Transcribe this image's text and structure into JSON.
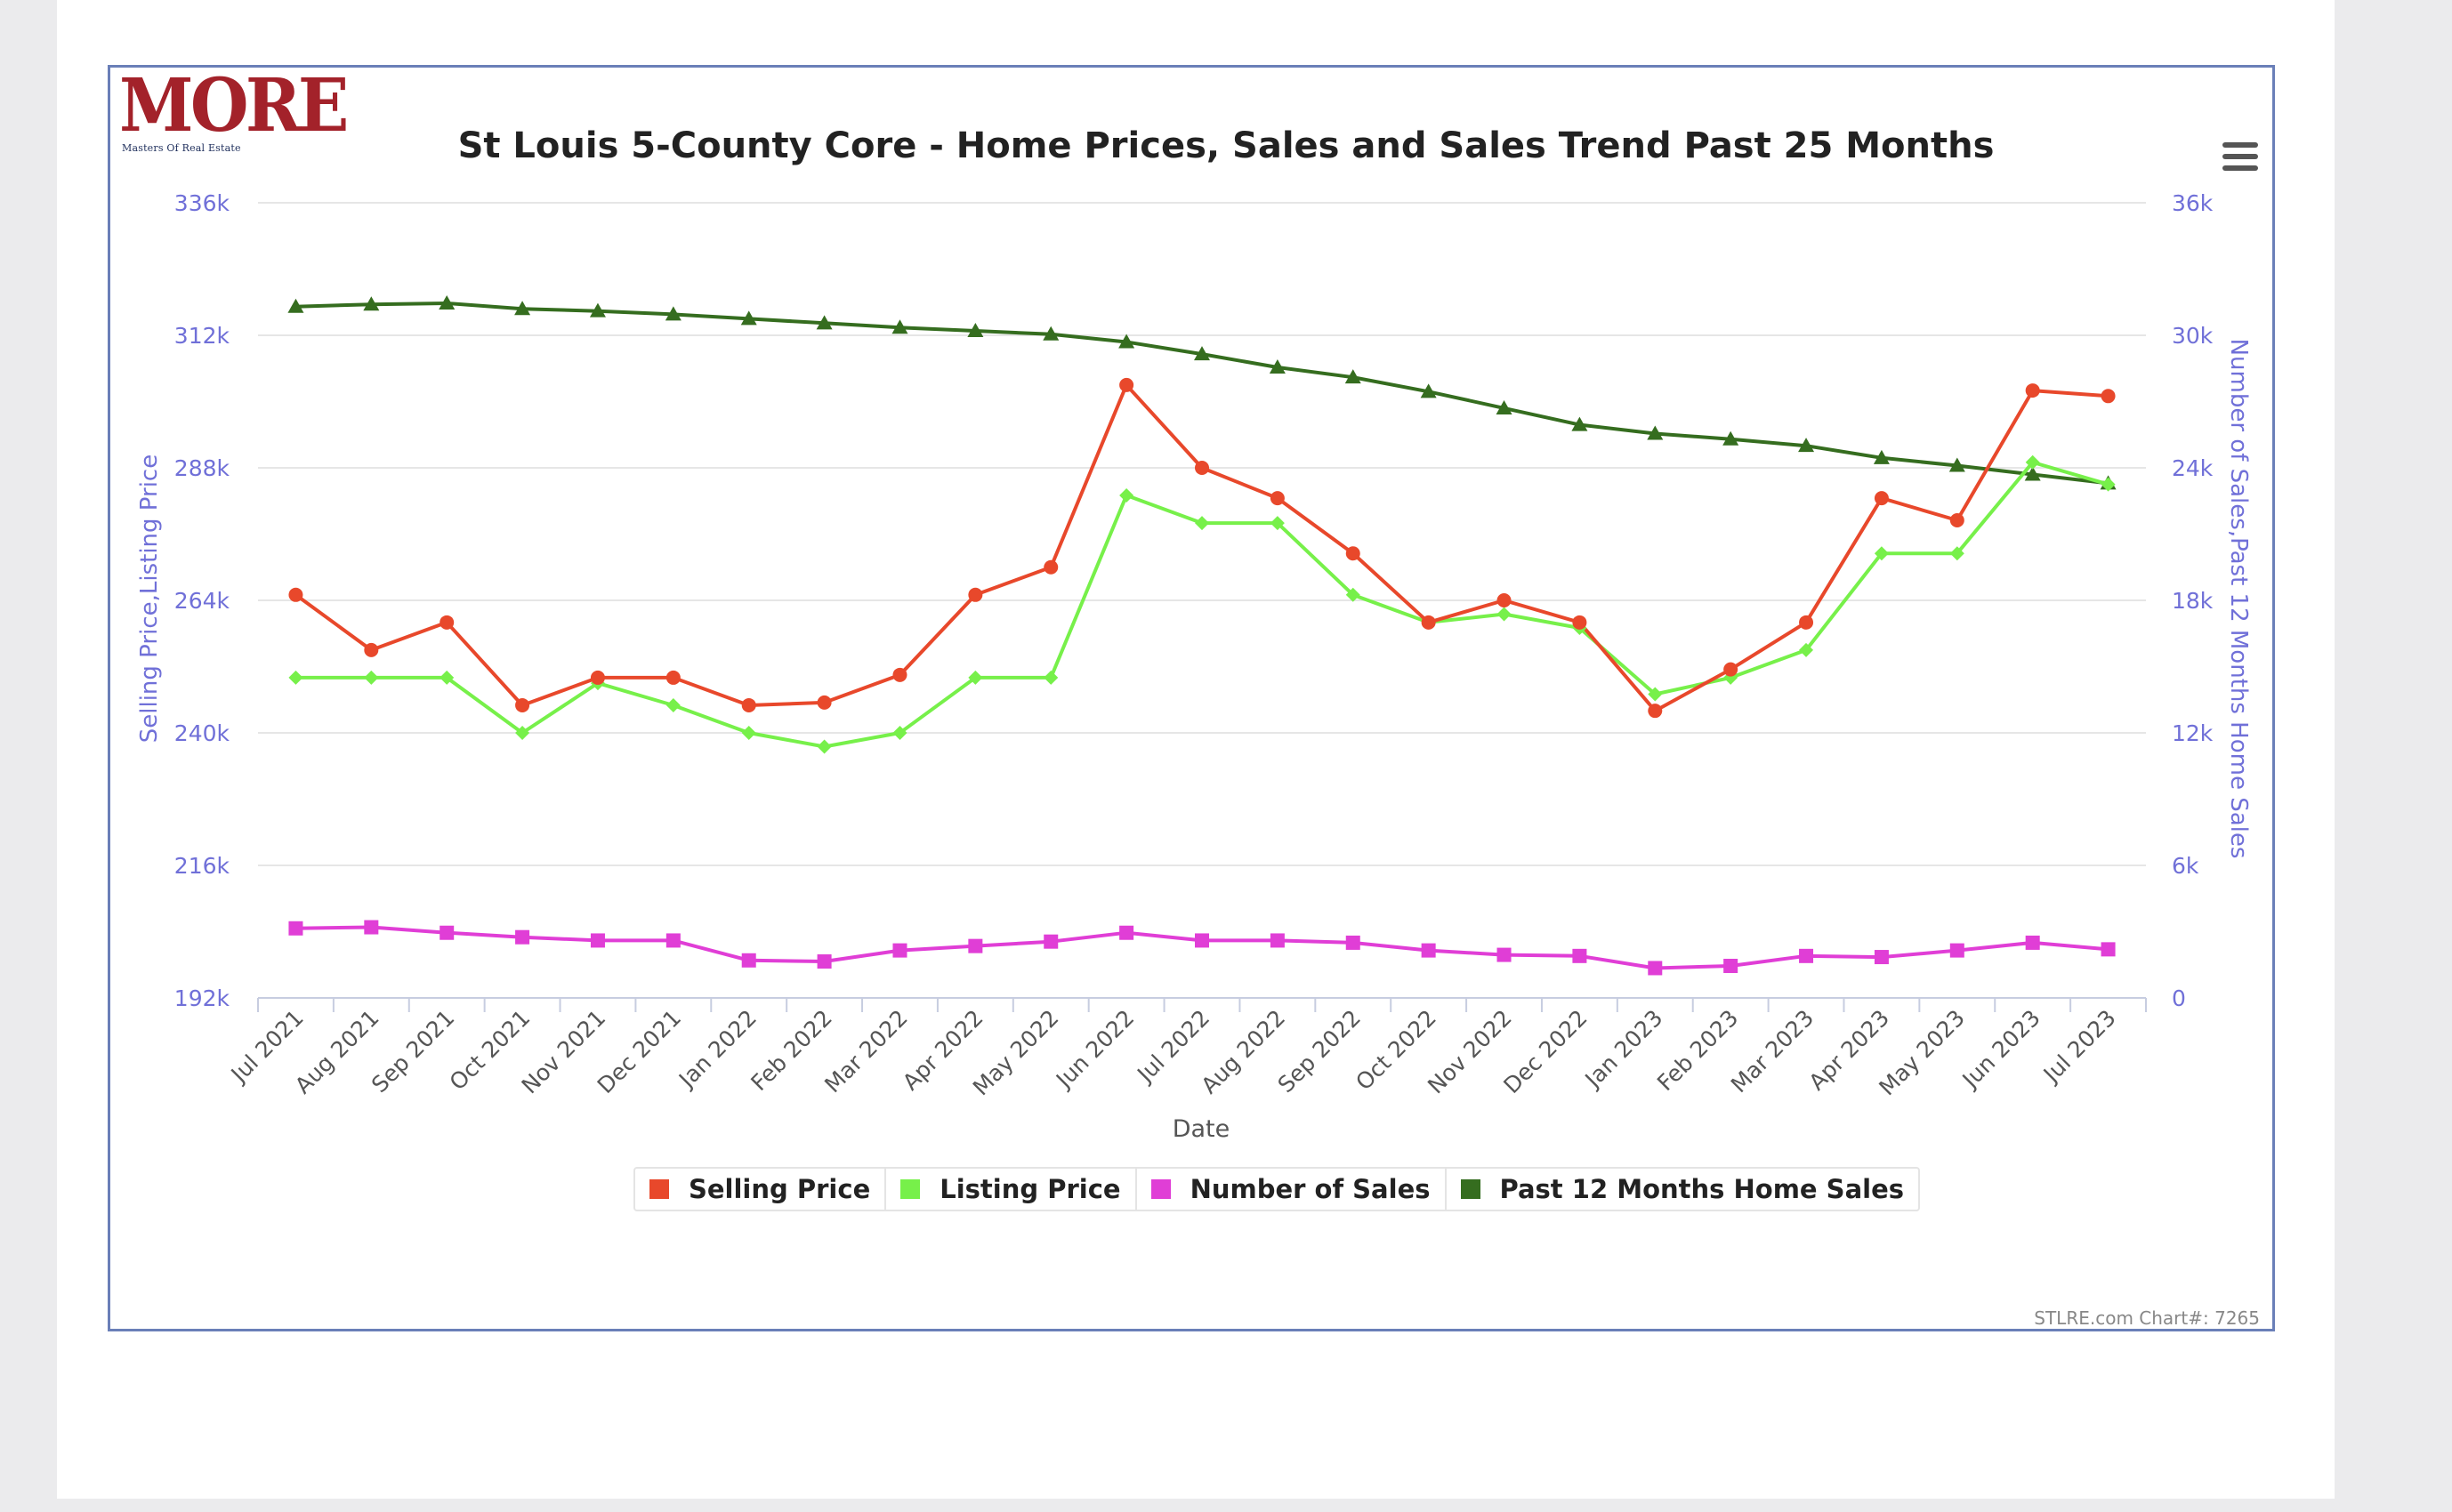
{
  "logo": {
    "word": "MORE",
    "subtitle": "Masters Of Real Estate"
  },
  "menu": {
    "icon": "hamburger-menu-icon"
  },
  "credits": "STLRE.com Chart#: 7265",
  "chart_data": {
    "type": "line",
    "title": "St Louis 5-County Core - Home Prices, Sales and Sales Trend Past 25 Months",
    "xlabel": "Date",
    "ylabel_left": "Selling Price,Listing Price",
    "ylabel_right": "Number of Sales,Past 12 Months Home Sales",
    "ylim_left": [
      192000,
      336000
    ],
    "ylim_right": [
      0,
      36000
    ],
    "yticks_left": [
      "192k",
      "216k",
      "240k",
      "264k",
      "288k",
      "312k",
      "336k"
    ],
    "yticks_right": [
      "0",
      "6k",
      "12k",
      "18k",
      "24k",
      "30k",
      "36k"
    ],
    "grid": true,
    "legend_position": "bottom-center",
    "categories": [
      "Jul 2021",
      "Aug 2021",
      "Sep 2021",
      "Oct 2021",
      "Nov 2021",
      "Dec 2021",
      "Jan 2022",
      "Feb 2022",
      "Mar 2022",
      "Apr 2022",
      "May 2022",
      "Jun 2022",
      "Jul 2022",
      "Aug 2022",
      "Sep 2022",
      "Oct 2022",
      "Nov 2022",
      "Dec 2022",
      "Jan 2023",
      "Feb 2023",
      "Mar 2023",
      "Apr 2023",
      "May 2023",
      "Jun 2023",
      "Jul 2023"
    ],
    "series": [
      {
        "name": "Selling Price",
        "axis": "left",
        "color": "#e8482b",
        "marker": "circle",
        "values": [
          265000,
          255000,
          260000,
          245000,
          250000,
          250000,
          245000,
          245500,
          250500,
          265000,
          270000,
          303000,
          288000,
          282500,
          272500,
          260000,
          264000,
          260000,
          244000,
          251500,
          260000,
          282500,
          278500,
          302000,
          301000
        ]
      },
      {
        "name": "Listing Price",
        "axis": "left",
        "color": "#77f04a",
        "marker": "diamond",
        "values": [
          250000,
          250000,
          250000,
          240000,
          249000,
          245000,
          240000,
          237500,
          240000,
          250000,
          250000,
          283000,
          278000,
          278000,
          265000,
          260000,
          261500,
          259000,
          247000,
          250000,
          255000,
          272500,
          272500,
          289000,
          285000
        ]
      },
      {
        "name": "Number of Sales",
        "axis": "right",
        "color": "#e03ed6",
        "marker": "square",
        "values": [
          3150,
          3200,
          2950,
          2750,
          2600,
          2600,
          1700,
          1650,
          2150,
          2350,
          2550,
          2950,
          2600,
          2600,
          2500,
          2150,
          1950,
          1900,
          1350,
          1450,
          1900,
          1850,
          2150,
          2500,
          2200
        ]
      },
      {
        "name": "Past 12 Months Home Sales",
        "axis": "right",
        "color": "#356d1f",
        "marker": "triangle",
        "values": [
          31300,
          31400,
          31450,
          31200,
          31100,
          30950,
          30750,
          30550,
          30350,
          30200,
          30050,
          29700,
          29150,
          28550,
          28100,
          27450,
          26700,
          25950,
          25550,
          25300,
          25000,
          24450,
          24100,
          23700,
          23300
        ]
      }
    ]
  }
}
